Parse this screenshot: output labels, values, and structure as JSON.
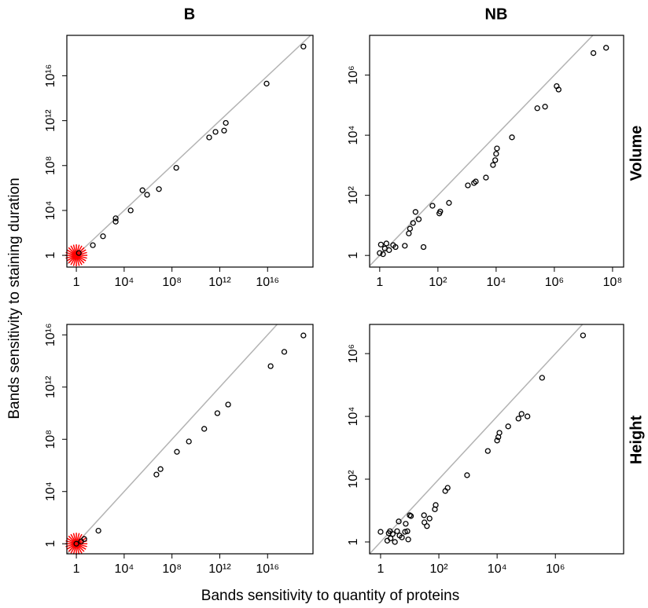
{
  "column_labels": [
    "B",
    "NB"
  ],
  "row_labels": [
    "Volume",
    "Height"
  ],
  "xlabel": "Bands sensitivity to quantity of proteins",
  "ylabel": "Bands sensitivity to staining duration",
  "chart_data": [
    {
      "type": "scatter",
      "log_x": true,
      "log_y": true,
      "color": "#000000",
      "xlim": [
        0.16,
        6.3e+19
      ],
      "ylim": [
        0.09,
        4e+19
      ],
      "xticks": [
        1,
        {
          "value": 10000,
          "label": "10⁴"
        },
        {
          "value": 100000000.0,
          "label": "10⁸"
        },
        {
          "value": 1000000000000.0,
          "label": "10¹²"
        },
        {
          "value": 1e+16,
          "label": "10¹⁶"
        }
      ],
      "yticks": [
        1,
        {
          "value": 10000,
          "label": "10⁴"
        },
        {
          "value": 100000000.0,
          "label": "10⁸"
        },
        {
          "value": 1000000000000.0,
          "label": "10¹²"
        },
        {
          "value": 1e+16,
          "label": "10¹⁶"
        }
      ],
      "highlight": {
        "x": 1,
        "y": 1,
        "color": "#ff0000"
      },
      "x": [
        1.6,
        24,
        170,
        1950,
        1950,
        35000,
        340000,
        830000,
        8100000,
        230000000,
        130000000000,
        440000000000,
        2300000000000,
        3200000000000,
        8300000000000000.0,
        1e+19
      ],
      "y": [
        1.6,
        8,
        50,
        1000,
        2000,
        10000,
        630000,
        250000,
        800000,
        63000000,
        32000000000,
        100000000000,
        130000000000,
        630000000000,
        2000000000000000.0,
        4e+18
      ]
    },
    {
      "type": "scatter",
      "log_x": true,
      "log_y": true,
      "color": "#000000",
      "xlim": [
        0.45,
        240000000.0
      ],
      "ylim": [
        0.41,
        21000000.0
      ],
      "xticks": [
        1,
        {
          "value": 100,
          "label": "10²"
        },
        {
          "value": 10000,
          "label": "10⁴"
        },
        {
          "value": 1000000,
          "label": "10⁶"
        },
        {
          "value": 100000000,
          "label": "10⁸"
        }
      ],
      "yticks": [
        1,
        {
          "value": 100,
          "label": "10²"
        },
        {
          "value": 10000,
          "label": "10⁴"
        },
        {
          "value": 1000000,
          "label": "10⁶"
        }
      ],
      "x": [
        1,
        1.3,
        1.1,
        1.5,
        1.7,
        2.1,
        2.9,
        3.5,
        7.3,
        10,
        11,
        14,
        17,
        22,
        32,
        65,
        112,
        120,
        240,
        1070,
        1740,
        2000,
        4470,
        7800,
        9300,
        10000,
        10700,
        35000,
        260000,
        480000,
        1200000,
        1400000,
        22000000,
        60000000
      ],
      "y": [
        1.2,
        1.1,
        2.3,
        1.7,
        2.5,
        1.5,
        2.2,
        1.9,
        2.1,
        5.4,
        7.8,
        12,
        28,
        16,
        1.9,
        45,
        25,
        29,
        56,
        214,
        257,
        288,
        389,
        1020,
        1480,
        2400,
        3630,
        8500,
        79000,
        89000,
        430000,
        330000,
        5400000,
        8100000
      ]
    },
    {
      "type": "scatter",
      "log_x": true,
      "log_y": true,
      "color": "#000000",
      "xlim": [
        0.16,
        6.3e+19
      ],
      "ylim": [
        0.17,
        6.3e+16
      ],
      "xticks": [
        1,
        {
          "value": 10000,
          "label": "10⁴"
        },
        {
          "value": 100000000.0,
          "label": "10⁸"
        },
        {
          "value": 1000000000000.0,
          "label": "10¹²"
        },
        {
          "value": 1e+16,
          "label": "10¹⁶"
        }
      ],
      "yticks": [
        1,
        {
          "value": 10000,
          "label": "10⁴"
        },
        {
          "value": 100000000.0,
          "label": "10⁸"
        },
        {
          "value": 1000000000000.0,
          "label": "10¹²"
        },
        {
          "value": 1e+16,
          "label": "10¹⁶"
        }
      ],
      "highlight": {
        "x": 1,
        "y": 1,
        "color": "#ff0000"
      },
      "x": [
        1,
        2.5,
        4.6,
        70,
        5000000,
        11000000,
        260000000,
        2600000000,
        50000000000,
        630000000000,
        5000000000000,
        1.8e+16,
        2.5e+17,
        1e+19
      ],
      "y": [
        1,
        1.5,
        2.3,
        10,
        200000,
        520000,
        11000000,
        68000000,
        630000000,
        10000000000,
        46000000000,
        40000000000000,
        500000000000000,
        9000000000000000.0
      ]
    },
    {
      "type": "scatter",
      "log_x": true,
      "log_y": true,
      "color": "#000000",
      "xlim": [
        0.42,
        220000000.0
      ],
      "ylim": [
        0.42,
        8500000.0
      ],
      "xticks": [
        1,
        {
          "value": 100,
          "label": "10²"
        },
        {
          "value": 10000,
          "label": "10⁴"
        },
        {
          "value": 1000000,
          "label": "10⁶"
        }
      ],
      "yticks": [
        1,
        {
          "value": 100,
          "label": "10²"
        },
        {
          "value": 10000,
          "label": "10⁴"
        },
        {
          "value": 1000000,
          "label": "10⁶"
        }
      ],
      "x": [
        1,
        1.7,
        1.9,
        2.1,
        2.2,
        2.6,
        3.1,
        3.7,
        4.2,
        4.5,
        5.4,
        6.9,
        7.3,
        8.3,
        8.9,
        10,
        11,
        31,
        32,
        39,
        48,
        73,
        78,
        166,
        200,
        930,
        4800,
        10000,
        11000,
        12000,
        24000,
        54000,
        69000,
        110000,
        350000,
        8900000
      ],
      "y": [
        2.1,
        1.1,
        1.9,
        2.2,
        1.3,
        1.8,
        1,
        2.2,
        4.5,
        1.6,
        1.4,
        2.1,
        3.8,
        2.2,
        1.2,
        7.1,
        6.7,
        7.1,
        4.2,
        3.2,
        5.6,
        11,
        15,
        42,
        53,
        134,
        790,
        1700,
        2200,
        3000,
        4800,
        8500,
        12000,
        10000,
        170000,
        3800000
      ]
    }
  ]
}
